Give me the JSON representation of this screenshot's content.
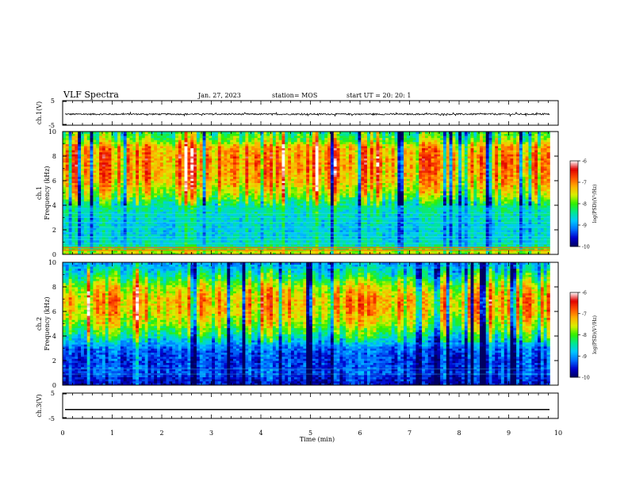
{
  "header": {
    "title": "VLF Spectra",
    "date": "Jan. 27, 2023",
    "station": "station= MOS",
    "start_ut": "start UT =   20: 20: 1"
  },
  "colors": {
    "spectrum_scale": [
      "#000060",
      "#0000cc",
      "#0070ff",
      "#00c8ff",
      "#00e890",
      "#30f000",
      "#d8f000",
      "#ffb000",
      "#ff5000",
      "#e00000",
      "#ffffff"
    ],
    "trace": "#000000"
  },
  "chart_data": [
    {
      "type": "line",
      "panel": "ch1-waveform",
      "ylabel": "ch.1(V)",
      "ylim": [
        -5,
        5
      ],
      "yticks": [
        "5",
        "-5"
      ],
      "xlim": [
        0,
        10
      ],
      "description_values": {
        "mean_level": -0.5,
        "noise_amplitude": 0.3
      }
    },
    {
      "type": "heatmap",
      "panel": "ch1-spectrogram",
      "ylabel": "ch.1\nFrequency (kHz)",
      "ylabel_lines": [
        "ch.1",
        "Frequency (kHz)"
      ],
      "ylim": [
        0,
        10
      ],
      "yticks": [
        "0",
        "2",
        "4",
        "6",
        "8",
        "10"
      ],
      "xlim": [
        0,
        9.83
      ],
      "colorbar": {
        "label": "log(PSD)(V²/Hz)",
        "range": [
          -10,
          -6
        ],
        "ticks": [
          "-6",
          "-7",
          "-8",
          "-9",
          "-10"
        ]
      },
      "profile_log_psd": [
        {
          "f": 0.3,
          "v": -7.6
        },
        {
          "f": 0.6,
          "v": -8.4
        },
        {
          "f": 1.0,
          "v": -8.6
        },
        {
          "f": 2.0,
          "v": -8.7
        },
        {
          "f": 3.0,
          "v": -8.6
        },
        {
          "f": 4.0,
          "v": -8.4
        },
        {
          "f": 5.0,
          "v": -7.6
        },
        {
          "f": 6.0,
          "v": -7.2
        },
        {
          "f": 7.0,
          "v": -7.0
        },
        {
          "f": 8.0,
          "v": -7.0
        },
        {
          "f": 8.8,
          "v": -7.2
        },
        {
          "f": 9.3,
          "v": -7.8
        },
        {
          "f": 10.0,
          "v": -8.2
        }
      ]
    },
    {
      "type": "heatmap",
      "panel": "ch2-spectrogram",
      "ylabel": "ch.2\nFrequency (kHz)",
      "ylabel_lines": [
        "ch.2",
        "Frequency (kHz)"
      ],
      "ylim": [
        0,
        10
      ],
      "yticks": [
        "0",
        "2",
        "4",
        "6",
        "8",
        "10"
      ],
      "xlim": [
        0,
        9.83
      ],
      "colorbar": {
        "label": "log(PSD)(V²/Hz)",
        "range": [
          -10,
          -6
        ],
        "ticks": [
          "-6",
          "-7",
          "-8",
          "-9",
          "-10"
        ]
      },
      "profile_log_psd": [
        {
          "f": 0.3,
          "v": -9.6
        },
        {
          "f": 1.0,
          "v": -9.3
        },
        {
          "f": 2.0,
          "v": -9.4
        },
        {
          "f": 3.0,
          "v": -9.2
        },
        {
          "f": 4.0,
          "v": -8.4
        },
        {
          "f": 5.0,
          "v": -7.7
        },
        {
          "f": 6.0,
          "v": -7.3
        },
        {
          "f": 7.0,
          "v": -7.2
        },
        {
          "f": 8.0,
          "v": -7.6
        },
        {
          "f": 9.0,
          "v": -8.4
        },
        {
          "f": 10.0,
          "v": -9.0
        }
      ]
    },
    {
      "type": "line",
      "panel": "ch3-waveform",
      "ylabel": "ch.3(V)",
      "ylim": [
        -5,
        5
      ],
      "yticks": [
        "5",
        "-5"
      ],
      "xlim": [
        0,
        10
      ],
      "description_values": {
        "mean_level": -1.5,
        "noise_amplitude": 0.0
      }
    }
  ],
  "x_axis": {
    "label": "Time  (min)",
    "ticks": [
      "0",
      "1",
      "2",
      "3",
      "4",
      "5",
      "6",
      "7",
      "8",
      "9",
      "10"
    ],
    "range": [
      0,
      10
    ]
  }
}
